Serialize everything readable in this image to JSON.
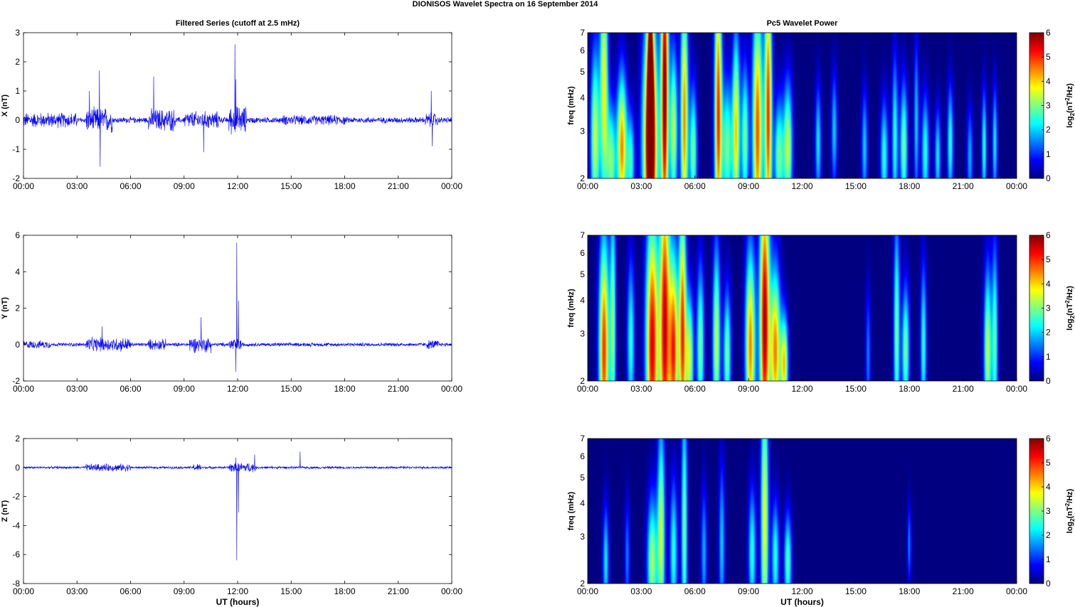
{
  "figure": {
    "title": "DIONISOS Wavelet Spectra on 16 September 2014"
  },
  "chart_data": [
    {
      "type": "line",
      "panel": "x-series",
      "title": "Filtered Series (cutoff at 2.5 mHz)",
      "xlabel": "",
      "ylabel": "X (nT)",
      "xlim": [
        0,
        24
      ],
      "ylim": [
        -2,
        3
      ],
      "xticks": [
        "00:00",
        "03:00",
        "06:00",
        "09:00",
        "12:00",
        "15:00",
        "18:00",
        "21:00",
        "00:00"
      ],
      "yticks": [
        "3",
        "2",
        "1",
        "0",
        "-1",
        "-2"
      ],
      "color": "#0000ff",
      "series": [
        {
          "values": [],
          "noise_amplitude_nT": 0.12,
          "activity": [
            [
              0,
              3,
              0.3
            ],
            [
              3.5,
              5,
              0.5
            ],
            [
              7,
              8.5,
              0.45
            ],
            [
              9,
              11,
              0.35
            ],
            [
              11.5,
              12.5,
              0.55
            ],
            [
              14.5,
              18,
              0.2
            ],
            [
              22.5,
              23.2,
              0.3
            ]
          ],
          "spikes": [
            [
              4.25,
              1.7
            ],
            [
              4.3,
              -1.6
            ],
            [
              3.7,
              1.0
            ],
            [
              7.3,
              1.5
            ],
            [
              10.1,
              -1.1
            ],
            [
              11.85,
              2.6
            ],
            [
              11.9,
              1.4
            ],
            [
              22.85,
              1.0
            ],
            [
              22.9,
              -0.9
            ]
          ]
        }
      ]
    },
    {
      "type": "line",
      "panel": "y-series",
      "title": "",
      "xlabel": "",
      "ylabel": "Y (nT)",
      "xlim": [
        0,
        24
      ],
      "ylim": [
        -2,
        6
      ],
      "xticks": [
        "00:00",
        "03:00",
        "06:00",
        "09:00",
        "12:00",
        "15:00",
        "18:00",
        "21:00",
        "00:00"
      ],
      "yticks": [
        "6",
        "4",
        "2",
        "0",
        "-2"
      ],
      "color": "#0000ff",
      "series": [
        {
          "values": [],
          "noise_amplitude_nT": 0.12,
          "activity": [
            [
              0,
              1.5,
              0.25
            ],
            [
              3.5,
              6,
              0.45
            ],
            [
              7,
              8,
              0.35
            ],
            [
              9.3,
              10.5,
              0.5
            ],
            [
              11.5,
              12.2,
              0.45
            ],
            [
              22.6,
              23.3,
              0.3
            ]
          ],
          "spikes": [
            [
              11.95,
              5.6
            ],
            [
              12.05,
              2.4
            ],
            [
              11.9,
              -1.5
            ],
            [
              9.95,
              1.5
            ],
            [
              4.4,
              1.0
            ]
          ]
        }
      ]
    },
    {
      "type": "line",
      "panel": "z-series",
      "title": "",
      "xlabel": "UT (hours)",
      "ylabel": "Z (nT)",
      "xlim": [
        0,
        24
      ],
      "ylim": [
        -8,
        2
      ],
      "xticks": [
        "00:00",
        "03:00",
        "06:00",
        "09:00",
        "12:00",
        "15:00",
        "18:00",
        "21:00",
        "00:00"
      ],
      "yticks": [
        "2",
        "0",
        "-2",
        "-4",
        "-6",
        "-8"
      ],
      "color": "#0000ff",
      "series": [
        {
          "values": [],
          "noise_amplitude_nT": 0.1,
          "activity": [
            [
              3.5,
              6,
              0.3
            ],
            [
              9.5,
              10,
              0.3
            ],
            [
              11.5,
              13,
              0.4
            ]
          ],
          "spikes": [
            [
              11.95,
              -6.4
            ],
            [
              12.05,
              -3.1
            ],
            [
              12.95,
              0.9
            ],
            [
              15.5,
              1.1
            ],
            [
              11.9,
              0.7
            ]
          ]
        }
      ]
    },
    {
      "type": "heatmap",
      "panel": "x-wavelet",
      "title": "Pc5 Wavelet Power",
      "xlabel": "",
      "ylabel": "freq (mHz)",
      "colorbar_label": "log2(nT2/Hz)",
      "xlim": [
        0,
        24
      ],
      "ylim": [
        2,
        7
      ],
      "yscale": "log",
      "clim": [
        0,
        6
      ],
      "colormap": "jet",
      "xticks": [
        "00:00",
        "03:00",
        "06:00",
        "09:00",
        "12:00",
        "15:00",
        "18:00",
        "21:00",
        "00:00"
      ],
      "yticks": [
        "7",
        "6",
        "5",
        "4",
        "3",
        "2"
      ],
      "cticks": [
        "6",
        "5",
        "4",
        "3",
        "2",
        "1",
        "0"
      ],
      "blobs": [
        [
          0.4,
          2.8,
          0.18,
          0.55,
          3.5
        ],
        [
          0.9,
          4.5,
          0.16,
          0.8,
          3.8
        ],
        [
          1.3,
          2.3,
          0.18,
          0.35,
          3
        ],
        [
          1.9,
          2.6,
          0.2,
          0.45,
          4.5
        ],
        [
          2.4,
          2.3,
          0.15,
          0.3,
          2.5
        ],
        [
          3.5,
          2.6,
          0.3,
          0.75,
          6.2
        ],
        [
          3.5,
          4.5,
          0.12,
          0.7,
          4.5
        ],
        [
          4.3,
          4.2,
          0.15,
          1.0,
          6
        ],
        [
          4.8,
          3.0,
          0.15,
          0.5,
          3.5
        ],
        [
          5.4,
          3.3,
          0.15,
          0.8,
          4.5
        ],
        [
          5.9,
          2.5,
          0.15,
          0.4,
          3
        ],
        [
          7.3,
          3.5,
          0.15,
          0.9,
          5
        ],
        [
          7.8,
          2.6,
          0.2,
          0.4,
          3
        ],
        [
          8.3,
          3.0,
          0.15,
          0.6,
          4
        ],
        [
          8.8,
          2.8,
          0.15,
          0.45,
          3
        ],
        [
          9.5,
          3.0,
          0.2,
          0.8,
          4.8
        ],
        [
          10.1,
          3.5,
          0.15,
          0.9,
          5
        ],
        [
          10.7,
          2.4,
          0.18,
          0.35,
          3
        ],
        [
          11.2,
          2.6,
          0.18,
          0.4,
          3.5
        ],
        [
          12.9,
          2.7,
          0.12,
          0.35,
          2.2
        ],
        [
          13.8,
          3.0,
          0.12,
          0.35,
          2
        ],
        [
          15.5,
          2.6,
          0.12,
          0.35,
          2
        ],
        [
          16.6,
          2.4,
          0.15,
          0.35,
          2.5
        ],
        [
          17.2,
          2.8,
          0.12,
          0.5,
          2.5
        ],
        [
          17.7,
          2.6,
          0.15,
          0.4,
          3
        ],
        [
          18.4,
          3.2,
          0.1,
          0.5,
          2
        ],
        [
          18.9,
          2.5,
          0.15,
          0.35,
          2.5
        ],
        [
          19.6,
          2.4,
          0.12,
          0.3,
          2.2
        ],
        [
          20.3,
          2.7,
          0.12,
          0.35,
          2.5
        ],
        [
          21.4,
          2.4,
          0.12,
          0.3,
          1.8
        ],
        [
          22.2,
          2.6,
          0.1,
          0.35,
          2.5
        ],
        [
          22.8,
          2.7,
          0.1,
          0.35,
          2.2
        ]
      ]
    },
    {
      "type": "heatmap",
      "panel": "y-wavelet",
      "title": "",
      "xlabel": "",
      "ylabel": "freq (mHz)",
      "colorbar_label": "log2(nT2/Hz)",
      "xlim": [
        0,
        24
      ],
      "ylim": [
        2,
        7
      ],
      "yscale": "log",
      "clim": [
        0,
        6
      ],
      "colormap": "jet",
      "xticks": [
        "00:00",
        "03:00",
        "06:00",
        "09:00",
        "12:00",
        "15:00",
        "18:00",
        "21:00",
        "00:00"
      ],
      "yticks": [
        "7",
        "6",
        "5",
        "4",
        "3",
        "2"
      ],
      "cticks": [
        "6",
        "5",
        "4",
        "3",
        "2",
        "1",
        "0"
      ],
      "blobs": [
        [
          0.9,
          2.6,
          0.2,
          0.7,
          5
        ],
        [
          1.4,
          3.2,
          0.12,
          0.8,
          3
        ],
        [
          2.4,
          2.8,
          0.15,
          0.5,
          2.5
        ],
        [
          3.6,
          2.7,
          0.25,
          0.8,
          5.5
        ],
        [
          4.3,
          3.2,
          0.2,
          1.0,
          5.5
        ],
        [
          4.8,
          2.6,
          0.18,
          0.6,
          5
        ],
        [
          5.3,
          3.0,
          0.15,
          0.8,
          5
        ],
        [
          5.7,
          2.4,
          0.15,
          0.4,
          3.5
        ],
        [
          6.3,
          2.7,
          0.15,
          0.5,
          3
        ],
        [
          7.2,
          2.8,
          0.15,
          0.6,
          3.5
        ],
        [
          7.8,
          2.5,
          0.15,
          0.4,
          3
        ],
        [
          9.1,
          2.7,
          0.2,
          0.6,
          4.5
        ],
        [
          9.9,
          3.3,
          0.2,
          0.9,
          5.8
        ],
        [
          10.5,
          2.6,
          0.2,
          0.5,
          4.5
        ],
        [
          11.0,
          2.3,
          0.15,
          0.3,
          4
        ],
        [
          15.7,
          2.5,
          0.1,
          0.4,
          1.5
        ],
        [
          17.3,
          3.0,
          0.12,
          0.7,
          3
        ],
        [
          17.8,
          2.6,
          0.15,
          0.4,
          3
        ],
        [
          18.8,
          2.7,
          0.12,
          0.5,
          2.5
        ],
        [
          22.4,
          2.6,
          0.15,
          0.5,
          3.5
        ],
        [
          22.8,
          2.8,
          0.12,
          0.6,
          2.8
        ]
      ]
    },
    {
      "type": "heatmap",
      "panel": "z-wavelet",
      "title": "",
      "xlabel": "UT (hours)",
      "ylabel": "freq (mHz)",
      "colorbar_label": "log2(nT2/Hz)",
      "xlim": [
        0,
        24
      ],
      "ylim": [
        2,
        7
      ],
      "yscale": "log",
      "clim": [
        0,
        6
      ],
      "colormap": "jet",
      "xticks": [
        "00:00",
        "03:00",
        "06:00",
        "09:00",
        "12:00",
        "15:00",
        "18:00",
        "21:00",
        "00:00"
      ],
      "yticks": [
        "7",
        "6",
        "5",
        "4",
        "3",
        "2"
      ],
      "cticks": [
        "6",
        "5",
        "4",
        "3",
        "2",
        "1",
        "0"
      ],
      "blobs": [
        [
          1.0,
          2.4,
          0.12,
          0.35,
          2.2
        ],
        [
          2.2,
          2.5,
          0.1,
          0.35,
          1.5
        ],
        [
          3.6,
          2.4,
          0.2,
          0.4,
          3.3
        ],
        [
          4.1,
          3.0,
          0.15,
          0.7,
          3.5
        ],
        [
          4.8,
          2.6,
          0.15,
          0.45,
          2.5
        ],
        [
          5.4,
          3.2,
          0.12,
          0.8,
          3
        ],
        [
          6.5,
          2.6,
          0.12,
          0.4,
          1.8
        ],
        [
          7.5,
          2.8,
          0.12,
          0.5,
          2
        ],
        [
          9.2,
          2.6,
          0.15,
          0.4,
          2.5
        ],
        [
          9.9,
          3.4,
          0.15,
          0.9,
          3.8
        ],
        [
          10.5,
          2.5,
          0.15,
          0.35,
          2.5
        ],
        [
          11.2,
          2.4,
          0.15,
          0.3,
          2.8
        ],
        [
          18.0,
          2.8,
          0.08,
          0.25,
          1.5
        ]
      ]
    }
  ]
}
